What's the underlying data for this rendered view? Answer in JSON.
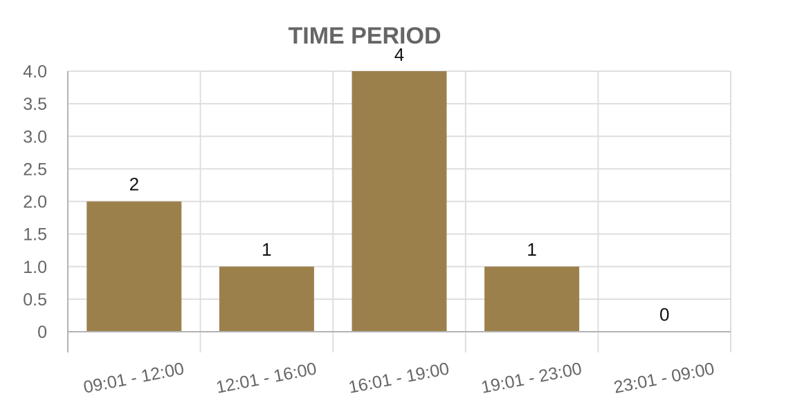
{
  "chart_data": {
    "type": "bar",
    "title": "TIME PERIOD",
    "categories": [
      "09:01 - 12:00",
      "12:01 - 16:00",
      "16:01 - 19:00",
      "19:01 - 23:00",
      "23:01 - 09:00"
    ],
    "values": [
      2,
      1,
      4,
      1,
      0
    ],
    "data_labels": [
      "2",
      "1",
      "4",
      "1",
      "0"
    ],
    "ylim": [
      0,
      4
    ],
    "yticks": [
      "0",
      "0.5",
      "1.0",
      "1.5",
      "2.0",
      "2.5",
      "3.0",
      "3.5",
      "4.0"
    ],
    "grid": true,
    "bar_color": "#9c804c"
  }
}
